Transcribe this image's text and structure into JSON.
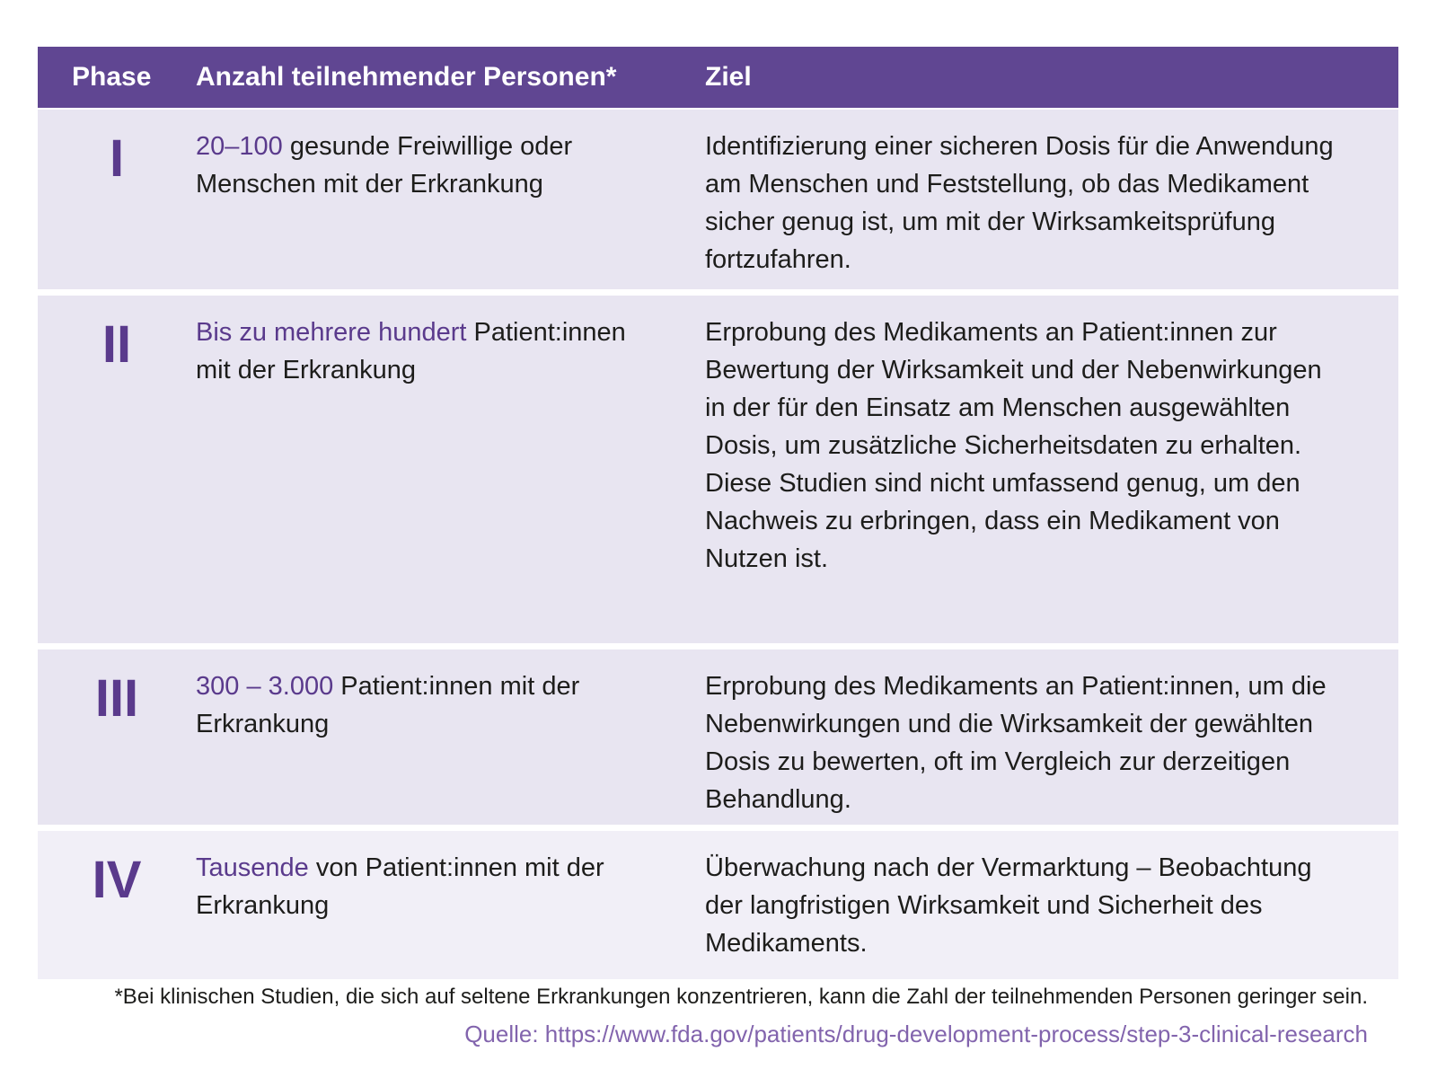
{
  "table": {
    "header": {
      "phase": "Phase",
      "anzahl": "Anzahl teilnehmender Personen*",
      "ziel": "Ziel"
    },
    "rows": [
      {
        "phase": "I",
        "anzahl_highlight": "20–100",
        "anzahl_rest": " gesunde Freiwillige oder Menschen mit der Erkrankung",
        "ziel": "Identifizierung einer sicheren Dosis für die Anwendung am Menschen und Feststellung, ob das Medikament sicher genug ist, um mit der Wirksamkeitsprüfung fortzufahren."
      },
      {
        "phase": "II",
        "anzahl_highlight": "Bis zu mehrere hundert",
        "anzahl_rest": " Patient:innen mit der Erkrankung",
        "ziel": "Erprobung des Medikaments an Patient:innen zur Bewertung der Wirksamkeit und der Nebenwirkungen in der für den Einsatz am Menschen ausgewählten Dosis, um zusätzliche Sicherheitsdaten zu erhalten. Diese Studien sind nicht umfassend genug, um den Nachweis zu erbringen, dass ein Medikament von Nutzen ist."
      },
      {
        "phase": "III",
        "anzahl_highlight": "300 – 3.000",
        "anzahl_rest": " Patient:innen mit der Erkrankung",
        "ziel": "Erprobung des Medikaments an Patient:innen, um die Nebenwirkungen und die Wirksamkeit der gewählten Dosis zu bewerten, oft im Vergleich zur derzeitigen Behandlung."
      },
      {
        "phase": "IV",
        "anzahl_highlight": "Tausende",
        "anzahl_rest": " von Patient:innen mit der Erkrankung",
        "ziel": "Überwachung nach der Vermarktung – Beobachtung der langfristigen Wirksamkeit und Sicherheit des Medikaments."
      }
    ]
  },
  "footnote": "*Bei klinischen Studien, die sich auf seltene Erkrankungen konzentrieren, kann die Zahl der teilnehmenden Personen geringer sein.",
  "source": "Quelle: https://www.fda.gov/patients/drug-development-process/step-3-clinical-research",
  "colors": {
    "header_bg": "#604692",
    "header_text": "#ffffff",
    "accent_purple": "#5a3a8c",
    "row_bg": "#e8e5f1",
    "row_last_bg": "#f1eff7",
    "body_text": "#1d1d1b",
    "source_text": "#8264ad"
  }
}
